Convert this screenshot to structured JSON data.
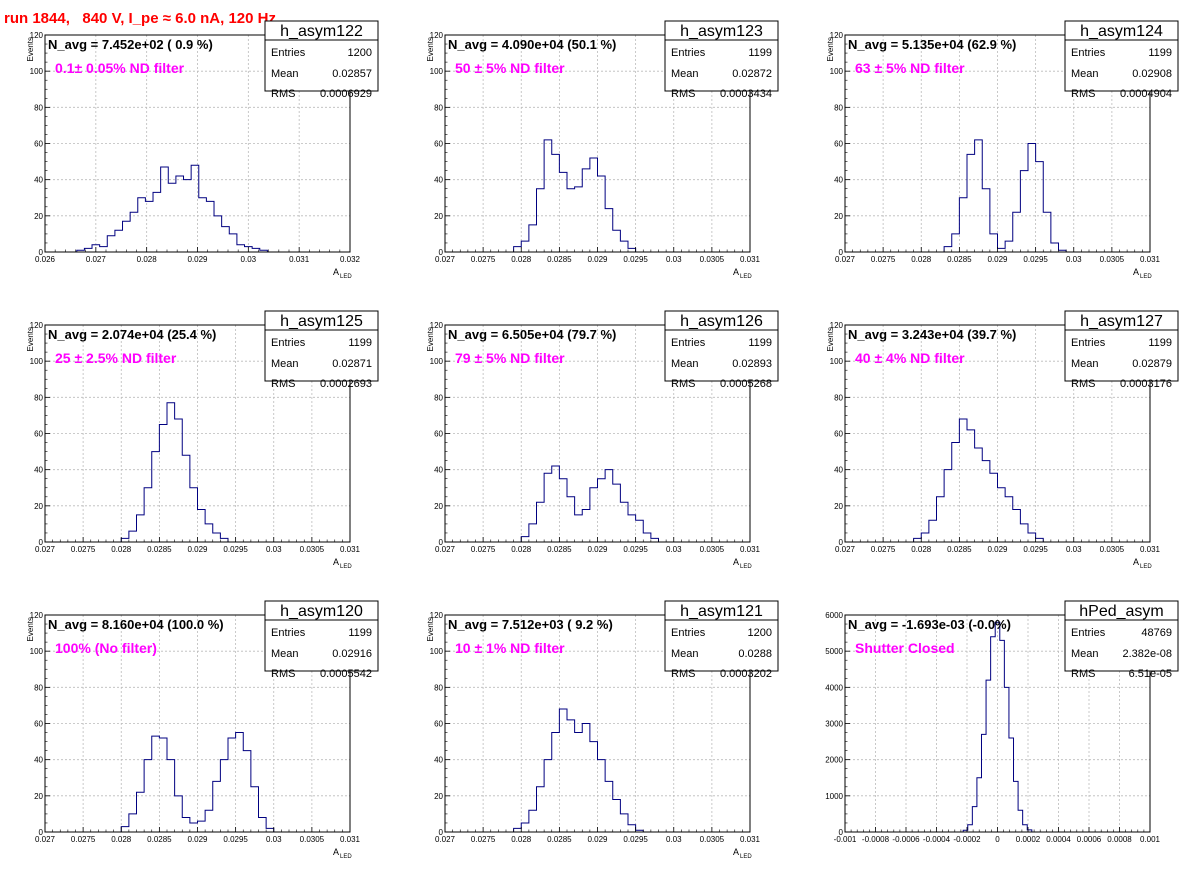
{
  "header": {
    "title": "run 1844,   840 V, I_pe ≈ 6.0 nA, 120 Hz"
  },
  "colors": {
    "hist_line": "#000080",
    "frame": "#000000",
    "grid": "#bbbbbb",
    "annotation": "#ff00ff",
    "header": "#ff0000"
  },
  "chart_data": [
    {
      "type": "histogram",
      "name": "h_asym122",
      "navg": "N_avg = 7.452e+02 ( 0.9 %)",
      "note": "0.1± 0.05% ND filter",
      "stats": {
        "entries_label": "Entries",
        "entries": "1200",
        "mean_label": "Mean",
        "mean": "0.02857",
        "rms_label": "RMS",
        "rms": "0.0006929"
      },
      "ylabel": "Events",
      "xlabel": "A",
      "xlabel_sub": "LED",
      "xlim": [
        0.026,
        0.032
      ],
      "ylim": [
        0,
        120
      ],
      "xticks": [
        0.026,
        0.027,
        0.028,
        0.029,
        0.03,
        0.031,
        0.032
      ],
      "xtick_labels": [
        "0.026",
        "0.027",
        "0.028",
        "0.029",
        "0.03",
        "0.031",
        "0.032"
      ],
      "yticks": [
        0,
        20,
        40,
        60,
        80,
        100,
        120
      ],
      "ytick_labels": [
        "0",
        "20",
        "40",
        "60",
        "80",
        "100",
        "120"
      ],
      "grid": true,
      "bins": [
        [
          0.0267,
          1
        ],
        [
          0.02685,
          2
        ],
        [
          0.027,
          4
        ],
        [
          0.02715,
          3
        ],
        [
          0.0273,
          9
        ],
        [
          0.02745,
          12
        ],
        [
          0.0276,
          17
        ],
        [
          0.02775,
          22
        ],
        [
          0.0279,
          30
        ],
        [
          0.02805,
          28
        ],
        [
          0.0282,
          33
        ],
        [
          0.02835,
          47
        ],
        [
          0.0285,
          38
        ],
        [
          0.02865,
          42
        ],
        [
          0.0288,
          40
        ],
        [
          0.02895,
          48
        ],
        [
          0.0291,
          30
        ],
        [
          0.02925,
          28
        ],
        [
          0.0294,
          20
        ],
        [
          0.02955,
          14
        ],
        [
          0.0297,
          10
        ],
        [
          0.02985,
          4
        ],
        [
          0.03,
          3
        ],
        [
          0.03015,
          2
        ],
        [
          0.0303,
          1
        ]
      ]
    },
    {
      "type": "histogram",
      "name": "h_asym123",
      "navg": "N_avg = 4.090e+04 (50.1 %)",
      "note": "50 ± 5% ND filter",
      "stats": {
        "entries_label": "Entries",
        "entries": "1199",
        "mean_label": "Mean",
        "mean": "0.02872",
        "rms_label": "RMS",
        "rms": "0.0003434"
      },
      "ylabel": "Events",
      "xlabel": "A",
      "xlabel_sub": "LED",
      "xlim": [
        0.027,
        0.031
      ],
      "ylim": [
        0,
        120
      ],
      "xticks": [
        0.027,
        0.0275,
        0.028,
        0.0285,
        0.029,
        0.0295,
        0.03,
        0.0305,
        0.031
      ],
      "xtick_labels": [
        "0.027",
        "0.0275",
        "0.028",
        "0.0285",
        "0.029",
        "0.0295",
        "0.03",
        "0.0305",
        "0.031"
      ],
      "yticks": [
        0,
        20,
        40,
        60,
        80,
        100,
        120
      ],
      "ytick_labels": [
        "0",
        "20",
        "40",
        "60",
        "80",
        "100",
        "120"
      ],
      "grid": true,
      "bins": [
        [
          0.02795,
          3
        ],
        [
          0.02805,
          6
        ],
        [
          0.02815,
          15
        ],
        [
          0.02825,
          35
        ],
        [
          0.02835,
          62
        ],
        [
          0.02845,
          54
        ],
        [
          0.02855,
          44
        ],
        [
          0.02865,
          35
        ],
        [
          0.02875,
          36
        ],
        [
          0.02885,
          46
        ],
        [
          0.02895,
          52
        ],
        [
          0.02905,
          42
        ],
        [
          0.02915,
          24
        ],
        [
          0.02925,
          12
        ],
        [
          0.02935,
          6
        ],
        [
          0.02945,
          2
        ]
      ]
    },
    {
      "type": "histogram",
      "name": "h_asym124",
      "navg": "N_avg = 5.135e+04 (62.9 %)",
      "note": "63 ± 5% ND filter",
      "stats": {
        "entries_label": "Entries",
        "entries": "1199",
        "mean_label": "Mean",
        "mean": "0.02908",
        "rms_label": "RMS",
        "rms": "0.0004904"
      },
      "ylabel": "Events",
      "xlabel": "A",
      "xlabel_sub": "LED",
      "xlim": [
        0.027,
        0.031
      ],
      "ylim": [
        0,
        120
      ],
      "xticks": [
        0.027,
        0.0275,
        0.028,
        0.0285,
        0.029,
        0.0295,
        0.03,
        0.0305,
        0.031
      ],
      "xtick_labels": [
        "0.027",
        "0.0275",
        "0.028",
        "0.0285",
        "0.029",
        "0.0295",
        "0.03",
        "0.0305",
        "0.031"
      ],
      "yticks": [
        0,
        20,
        40,
        60,
        80,
        100,
        120
      ],
      "ytick_labels": [
        "0",
        "20",
        "40",
        "60",
        "80",
        "100",
        "120"
      ],
      "grid": true,
      "bins": [
        [
          0.02835,
          3
        ],
        [
          0.02845,
          10
        ],
        [
          0.02855,
          30
        ],
        [
          0.02865,
          54
        ],
        [
          0.02875,
          62
        ],
        [
          0.02885,
          35
        ],
        [
          0.02895,
          10
        ],
        [
          0.02905,
          2
        ],
        [
          0.02915,
          6
        ],
        [
          0.02925,
          22
        ],
        [
          0.02935,
          45
        ],
        [
          0.02945,
          60
        ],
        [
          0.02955,
          50
        ],
        [
          0.02965,
          22
        ],
        [
          0.02975,
          5
        ],
        [
          0.02985,
          1
        ]
      ]
    },
    {
      "type": "histogram",
      "name": "h_asym125",
      "navg": "N_avg = 2.074e+04 (25.4 %)",
      "note": "25 ± 2.5% ND filter",
      "stats": {
        "entries_label": "Entries",
        "entries": "1199",
        "mean_label": "Mean",
        "mean": "0.02871",
        "rms_label": "RMS",
        "rms": "0.0002693"
      },
      "ylabel": "Events",
      "xlabel": "A",
      "xlabel_sub": "LED",
      "xlim": [
        0.027,
        0.031
      ],
      "ylim": [
        0,
        120
      ],
      "xticks": [
        0.027,
        0.0275,
        0.028,
        0.0285,
        0.029,
        0.0295,
        0.03,
        0.0305,
        0.031
      ],
      "xtick_labels": [
        "0.027",
        "0.0275",
        "0.028",
        "0.0285",
        "0.029",
        "0.0295",
        "0.03",
        "0.0305",
        "0.031"
      ],
      "yticks": [
        0,
        20,
        40,
        60,
        80,
        100,
        120
      ],
      "ytick_labels": [
        "0",
        "20",
        "40",
        "60",
        "80",
        "100",
        "120"
      ],
      "grid": true,
      "bins": [
        [
          0.02805,
          2
        ],
        [
          0.02815,
          6
        ],
        [
          0.02825,
          15
        ],
        [
          0.02835,
          30
        ],
        [
          0.02845,
          50
        ],
        [
          0.02855,
          65
        ],
        [
          0.02865,
          77
        ],
        [
          0.02875,
          68
        ],
        [
          0.02885,
          48
        ],
        [
          0.02895,
          30
        ],
        [
          0.02905,
          18
        ],
        [
          0.02915,
          10
        ],
        [
          0.02925,
          5
        ],
        [
          0.02935,
          2
        ]
      ]
    },
    {
      "type": "histogram",
      "name": "h_asym126",
      "navg": "N_avg = 6.505e+04 (79.7 %)",
      "note": "79 ± 5% ND filter",
      "stats": {
        "entries_label": "Entries",
        "entries": "1199",
        "mean_label": "Mean",
        "mean": "0.02893",
        "rms_label": "RMS",
        "rms": "0.0005268"
      },
      "ylabel": "Events",
      "xlabel": "A",
      "xlabel_sub": "LED",
      "xlim": [
        0.027,
        0.031
      ],
      "ylim": [
        0,
        120
      ],
      "xticks": [
        0.027,
        0.0275,
        0.028,
        0.0285,
        0.029,
        0.0295,
        0.03,
        0.0305,
        0.031
      ],
      "xtick_labels": [
        "0.027",
        "0.0275",
        "0.028",
        "0.0285",
        "0.029",
        "0.0295",
        "0.03",
        "0.0305",
        "0.031"
      ],
      "yticks": [
        0,
        20,
        40,
        60,
        80,
        100,
        120
      ],
      "ytick_labels": [
        "0",
        "20",
        "40",
        "60",
        "80",
        "100",
        "120"
      ],
      "grid": true,
      "bins": [
        [
          0.02805,
          3
        ],
        [
          0.02815,
          10
        ],
        [
          0.02825,
          22
        ],
        [
          0.02835,
          38
        ],
        [
          0.02845,
          42
        ],
        [
          0.02855,
          35
        ],
        [
          0.02865,
          25
        ],
        [
          0.02875,
          15
        ],
        [
          0.02885,
          18
        ],
        [
          0.02895,
          30
        ],
        [
          0.02905,
          35
        ],
        [
          0.02915,
          40
        ],
        [
          0.02925,
          32
        ],
        [
          0.02935,
          22
        ],
        [
          0.02945,
          15
        ],
        [
          0.02955,
          12
        ],
        [
          0.02965,
          5
        ],
        [
          0.02975,
          2
        ]
      ]
    },
    {
      "type": "histogram",
      "name": "h_asym127",
      "navg": "N_avg = 3.243e+04 (39.7 %)",
      "note": "40 ± 4% ND filter",
      "stats": {
        "entries_label": "Entries",
        "entries": "1199",
        "mean_label": "Mean",
        "mean": "0.02879",
        "rms_label": "RMS",
        "rms": "0.0003176"
      },
      "ylabel": "Events",
      "xlabel": "A",
      "xlabel_sub": "LED",
      "xlim": [
        0.027,
        0.031
      ],
      "ylim": [
        0,
        120
      ],
      "xticks": [
        0.027,
        0.0275,
        0.028,
        0.0285,
        0.029,
        0.0295,
        0.03,
        0.0305,
        0.031
      ],
      "xtick_labels": [
        "0.027",
        "0.0275",
        "0.028",
        "0.0285",
        "0.029",
        "0.0295",
        "0.03",
        "0.0305",
        "0.031"
      ],
      "yticks": [
        0,
        20,
        40,
        60,
        80,
        100,
        120
      ],
      "ytick_labels": [
        "0",
        "20",
        "40",
        "60",
        "80",
        "100",
        "120"
      ],
      "grid": true,
      "bins": [
        [
          0.02795,
          2
        ],
        [
          0.02805,
          5
        ],
        [
          0.02815,
          12
        ],
        [
          0.02825,
          25
        ],
        [
          0.02835,
          40
        ],
        [
          0.02845,
          55
        ],
        [
          0.02855,
          68
        ],
        [
          0.02865,
          62
        ],
        [
          0.02875,
          52
        ],
        [
          0.02885,
          45
        ],
        [
          0.02895,
          38
        ],
        [
          0.02905,
          30
        ],
        [
          0.02915,
          25
        ],
        [
          0.02925,
          18
        ],
        [
          0.02935,
          10
        ],
        [
          0.02945,
          5
        ],
        [
          0.02955,
          2
        ]
      ]
    },
    {
      "type": "histogram",
      "name": "h_asym120",
      "navg": "N_avg = 8.160e+04 (100.0 %)",
      "note": "100% (No filter)",
      "stats": {
        "entries_label": "Entries",
        "entries": "1199",
        "mean_label": "Mean",
        "mean": "0.02916",
        "rms_label": "RMS",
        "rms": "0.0005542"
      },
      "ylabel": "Events",
      "xlabel": "A",
      "xlabel_sub": "LED",
      "xlim": [
        0.027,
        0.031
      ],
      "ylim": [
        0,
        120
      ],
      "xticks": [
        0.027,
        0.0275,
        0.028,
        0.0285,
        0.029,
        0.0295,
        0.03,
        0.0305,
        0.031
      ],
      "xtick_labels": [
        "0.027",
        "0.0275",
        "0.028",
        "0.0285",
        "0.029",
        "0.0295",
        "0.03",
        "0.0305",
        "0.031"
      ],
      "yticks": [
        0,
        20,
        40,
        60,
        80,
        100,
        120
      ],
      "ytick_labels": [
        "0",
        "20",
        "40",
        "60",
        "80",
        "100",
        "120"
      ],
      "grid": true,
      "bins": [
        [
          0.02805,
          3
        ],
        [
          0.02815,
          10
        ],
        [
          0.02825,
          22
        ],
        [
          0.02835,
          40
        ],
        [
          0.02845,
          53
        ],
        [
          0.02855,
          52
        ],
        [
          0.02865,
          40
        ],
        [
          0.02875,
          20
        ],
        [
          0.02885,
          8
        ],
        [
          0.02895,
          5
        ],
        [
          0.02905,
          6
        ],
        [
          0.02915,
          12
        ],
        [
          0.02925,
          28
        ],
        [
          0.02935,
          40
        ],
        [
          0.02945,
          52
        ],
        [
          0.02955,
          55
        ],
        [
          0.02965,
          45
        ],
        [
          0.02975,
          25
        ],
        [
          0.02985,
          8
        ],
        [
          0.02995,
          2
        ]
      ]
    },
    {
      "type": "histogram",
      "name": "h_asym121",
      "navg": "N_avg = 7.512e+03 ( 9.2 %)",
      "note": "10 ± 1% ND filter",
      "stats": {
        "entries_label": "Entries",
        "entries": "1200",
        "mean_label": "Mean",
        "mean": "0.0288",
        "rms_label": "RMS",
        "rms": "0.0003202"
      },
      "ylabel": "Events",
      "xlabel": "A",
      "xlabel_sub": "LED",
      "xlim": [
        0.027,
        0.031
      ],
      "ylim": [
        0,
        120
      ],
      "xticks": [
        0.027,
        0.0275,
        0.028,
        0.0285,
        0.029,
        0.0295,
        0.03,
        0.0305,
        0.031
      ],
      "xtick_labels": [
        "0.027",
        "0.0275",
        "0.028",
        "0.0285",
        "0.029",
        "0.0295",
        "0.03",
        "0.0305",
        "0.031"
      ],
      "yticks": [
        0,
        20,
        40,
        60,
        80,
        100,
        120
      ],
      "ytick_labels": [
        "0",
        "20",
        "40",
        "60",
        "80",
        "100",
        "120"
      ],
      "grid": true,
      "bins": [
        [
          0.02795,
          2
        ],
        [
          0.02805,
          5
        ],
        [
          0.02815,
          12
        ],
        [
          0.02825,
          25
        ],
        [
          0.02835,
          40
        ],
        [
          0.02845,
          55
        ],
        [
          0.02855,
          68
        ],
        [
          0.02865,
          62
        ],
        [
          0.02875,
          55
        ],
        [
          0.02885,
          60
        ],
        [
          0.02895,
          50
        ],
        [
          0.02905,
          40
        ],
        [
          0.02915,
          28
        ],
        [
          0.02925,
          18
        ],
        [
          0.02935,
          10
        ],
        [
          0.02945,
          4
        ],
        [
          0.02955,
          1
        ]
      ]
    },
    {
      "type": "histogram",
      "name": "hPed_asym",
      "navg": "N_avg = -1.693e-03 (-0.0%)",
      "note": "Shutter Closed",
      "stats": {
        "entries_label": "Entries",
        "entries": "48769",
        "mean_label": "Mean",
        "mean": "2.382e-08",
        "rms_label": "RMS",
        "rms": "6.51e-05"
      },
      "ylabel": "",
      "xlabel": "",
      "xlabel_sub": "",
      "xlim": [
        -0.001,
        0.001
      ],
      "ylim": [
        0,
        6000
      ],
      "xticks": [
        -0.001,
        -0.0008,
        -0.0006,
        -0.0004,
        -0.0002,
        0,
        0.0002,
        0.0004,
        0.0006,
        0.0008,
        0.001
      ],
      "xtick_labels": [
        "-0.001",
        "-0.0008",
        "-0.0006",
        "-0.0004",
        "-0.0002",
        "0",
        "0.0002",
        "0.0004",
        "0.0006",
        "0.0008",
        "0.001"
      ],
      "yticks": [
        0,
        1000,
        2000,
        3000,
        4000,
        5000,
        6000
      ],
      "ytick_labels": [
        "0",
        "1000",
        "2000",
        "3000",
        "4000",
        "5000",
        "6000"
      ],
      "grid": true,
      "bins": [
        [
          -0.00021,
          50
        ],
        [
          -0.00018,
          200
        ],
        [
          -0.00015,
          700
        ],
        [
          -0.00012,
          1500
        ],
        [
          -9e-05,
          2700
        ],
        [
          -6e-05,
          4200
        ],
        [
          -3e-05,
          5400
        ],
        [
          0.0,
          5800
        ],
        [
          3e-05,
          5300
        ],
        [
          6e-05,
          4000
        ],
        [
          9e-05,
          2600
        ],
        [
          0.00012,
          1400
        ],
        [
          0.00015,
          600
        ],
        [
          0.00018,
          200
        ],
        [
          0.00021,
          60
        ]
      ]
    }
  ]
}
